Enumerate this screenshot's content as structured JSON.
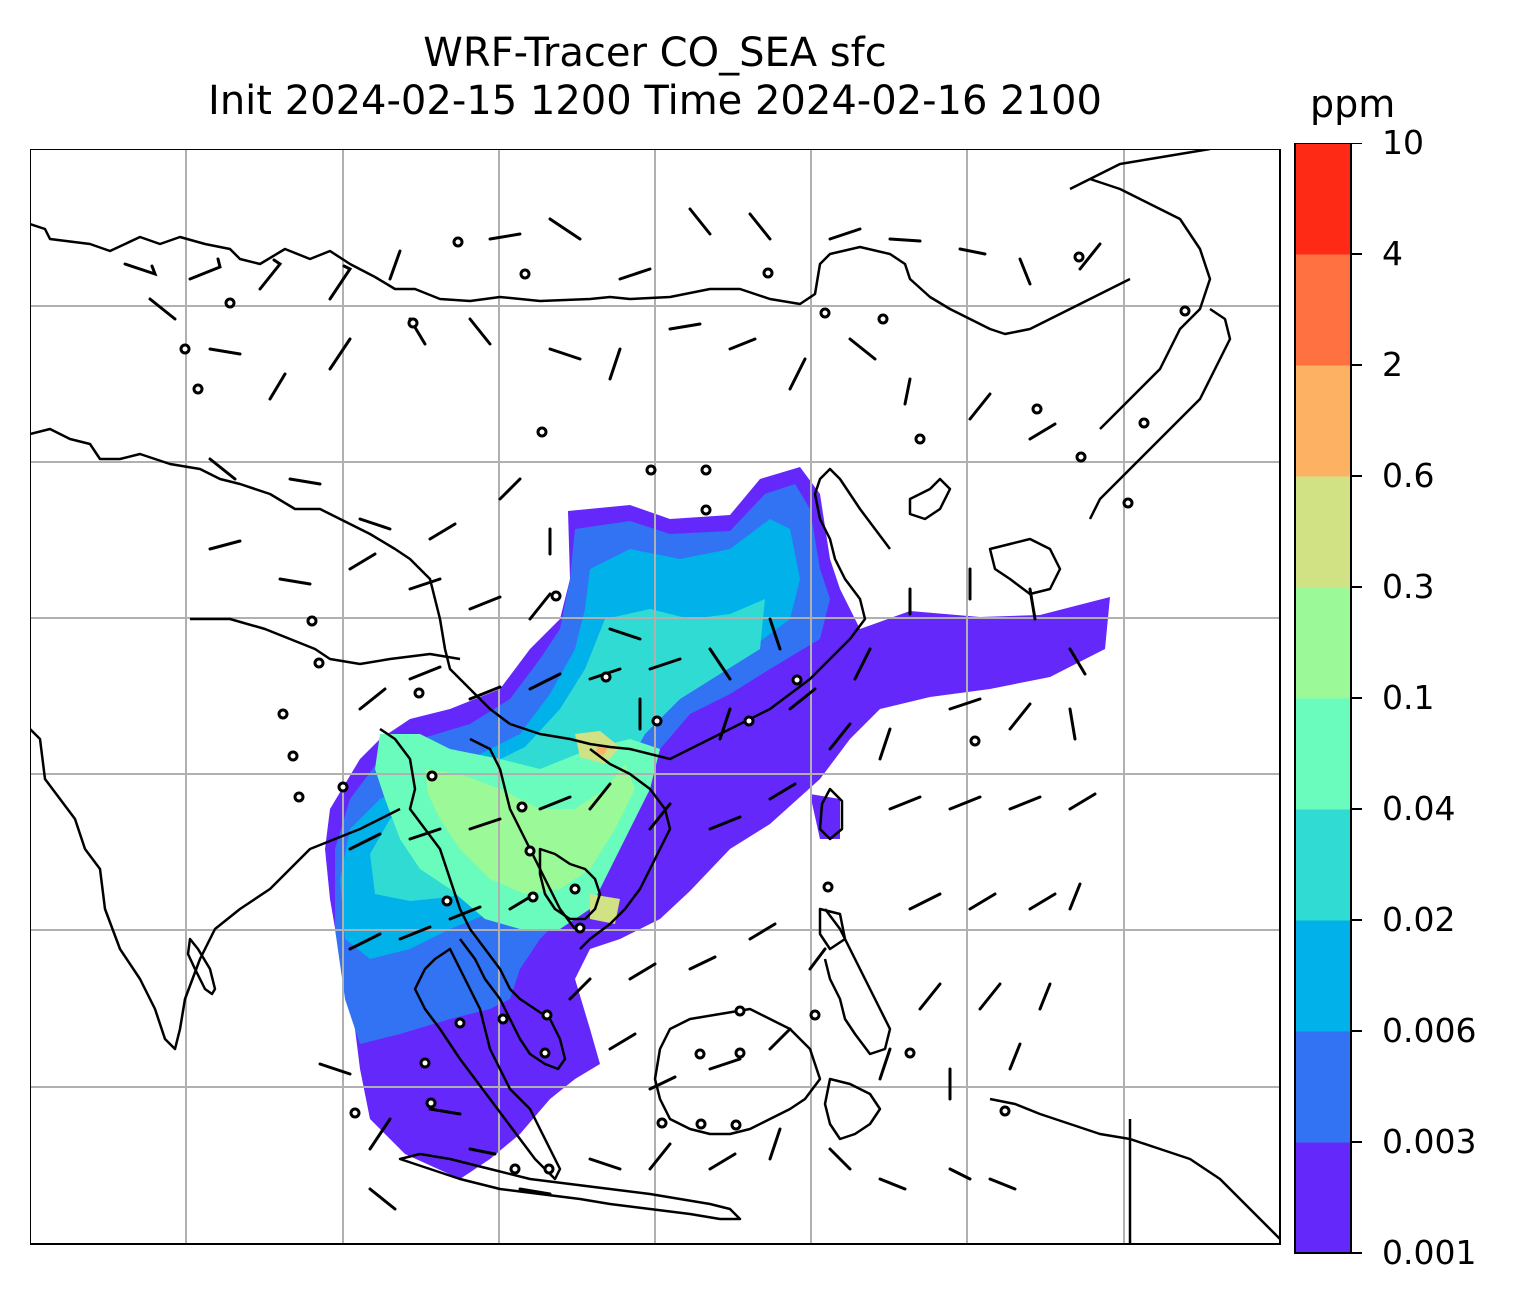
{
  "title_line1": "WRF-Tracer CO_SEA sfc",
  "title_line2": "Init 2024-02-15 1200 Time 2024-02-16 2100",
  "colorbar": {
    "unit": "ppm",
    "levels": [
      "0.001",
      "0.003",
      "0.006",
      "0.02",
      "0.04",
      "0.1",
      "0.3",
      "0.6",
      "2",
      "4",
      "10"
    ],
    "colors": [
      "#6528fb",
      "#3273f3",
      "#00b1ea",
      "#30dbd3",
      "#69fcbc",
      "#9bf997",
      "#d0e284",
      "#fdb163",
      "#ff7140",
      "#ff2a16"
    ]
  },
  "map": {
    "gridlines": true,
    "features": [
      "coastlines",
      "country-borders",
      "wind-barbs",
      "tracer-concentration-field"
    ]
  }
}
